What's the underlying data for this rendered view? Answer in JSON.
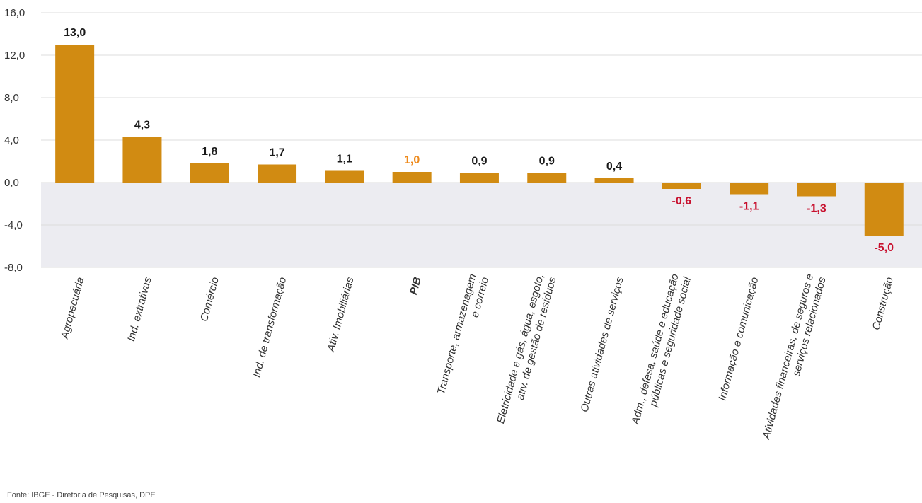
{
  "chart_data": {
    "type": "bar",
    "categories": [
      "Agropecuária",
      "Ind. extrativas",
      "Comércio",
      "Ind. de transformação",
      "Ativ. Imobiliárias",
      "PIB",
      "Transporte, armazenagem e correio",
      "Eletricidade e gás, água, esgoto, ativ. de gestão de resíduos",
      "Outras atividades de serviços",
      "Adm., defesa, saúde e educação públicas e seguridade social",
      "Informação e comunicação",
      "Atividades financeiras, de seguros e serviços relacionados",
      "Construção"
    ],
    "category_lines": [
      [
        "Agropecuária"
      ],
      [
        "Ind. extrativas"
      ],
      [
        "Comércio"
      ],
      [
        "Ind. de transformação"
      ],
      [
        "Ativ. Imobiliárias"
      ],
      [
        "PIB"
      ],
      [
        "Transporte, armazenagem",
        "e correio"
      ],
      [
        "Eletricidade e gás, água, esgoto,",
        "ativ. de gestão de resíduos"
      ],
      [
        "Outras atividades de serviços"
      ],
      [
        "Adm., defesa, saúde e educação",
        "públicas e seguridade social"
      ],
      [
        "Informação e comunicação"
      ],
      [
        "Atividades financeiras, de seguros e",
        "serviços relacionados"
      ],
      [
        "Construção"
      ]
    ],
    "values": [
      13.0,
      4.3,
      1.8,
      1.7,
      1.1,
      1.0,
      0.9,
      0.9,
      0.4,
      -0.6,
      -1.1,
      -1.3,
      -5.0
    ],
    "value_labels": [
      "13,0",
      "4,3",
      "1,8",
      "1,7",
      "1,1",
      "1,0",
      "0,9",
      "0,9",
      "0,4",
      "-0,6",
      "-1,1",
      "-1,3",
      "-5,0"
    ],
    "highlight_category": "PIB",
    "y_ticks": [
      16,
      12,
      8,
      4,
      0,
      -4,
      -8
    ],
    "y_tick_labels": [
      "16,0",
      "12,0",
      "8,0",
      "4,0",
      "0,0",
      "-4,0",
      "-8,0"
    ],
    "ylim": [
      -8,
      16
    ],
    "grid": true,
    "legend": "none",
    "colors": {
      "bar": "#d18b12",
      "positive_label": "#1a1a1a",
      "negative_label": "#c8102e",
      "highlight_label": "#ee8a1c",
      "negative_band": "#ececf1",
      "grid": "#dcdcdc"
    }
  },
  "source_note": "Fonte: IBGE - Diretoria de Pesquisas, DPE"
}
